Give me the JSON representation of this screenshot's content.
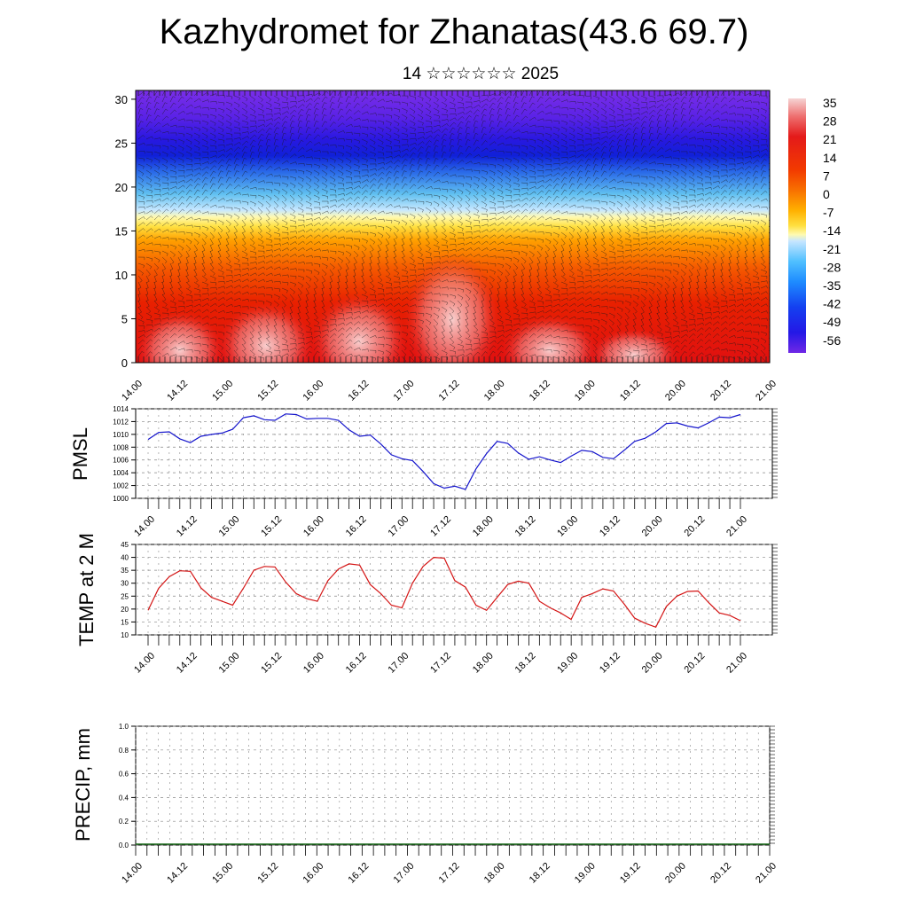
{
  "title": "Kazhydromet for Zhanatas(43.6 69.7)",
  "subtitle": "14 ☆☆☆☆☆☆ 2025",
  "time_labels": [
    "14.00",
    "14.12",
    "15.00",
    "15.12",
    "16.00",
    "16.12",
    "17.00",
    "17.12",
    "18.00",
    "18.12",
    "19.00",
    "19.12",
    "20.00",
    "20.12",
    "21.00"
  ],
  "chart_data": [
    {
      "type": "heatmap",
      "name": "cross-section",
      "y_ticks": [
        0,
        5,
        10,
        15,
        20,
        25,
        30
      ],
      "ylim": [
        0,
        31
      ],
      "colorbar": {
        "labels": [
          "35",
          "28",
          "21",
          "14",
          "7",
          "0",
          "-7",
          "-14",
          "-21",
          "-28",
          "-35",
          "-42",
          "-49",
          "-56"
        ],
        "colors": [
          "#f4c9c9",
          "#ef6a6a",
          "#e41a1a",
          "#f23a00",
          "#f75a00",
          "#ff9000",
          "#ffc800",
          "#fff060",
          "#c8e6ff",
          "#5ac8ff",
          "#1e8cff",
          "#1450f0",
          "#1e14e6",
          "#6e28e6"
        ]
      }
    },
    {
      "type": "line",
      "ylabel": "PMSL",
      "ylim": [
        1000,
        1014
      ],
      "y_ticks": [
        1000,
        1002,
        1004,
        1006,
        1008,
        1010,
        1012,
        1014
      ],
      "color": "#1414cc",
      "values": [
        1009.2,
        1010.3,
        1010.4,
        1009.3,
        1008.7,
        1009.7,
        1010.0,
        1010.2,
        1010.8,
        1012.6,
        1012.9,
        1012.3,
        1012.2,
        1013.2,
        1013.1,
        1012.4,
        1012.5,
        1012.5,
        1012.2,
        1010.7,
        1009.7,
        1009.9,
        1008.5,
        1006.8,
        1006.2,
        1005.9,
        1004.2,
        1002.3,
        1001.6,
        1001.9,
        1001.4,
        1004.6,
        1007.0,
        1008.9,
        1008.6,
        1007.1,
        1006.1,
        1006.5,
        1006.0,
        1005.6,
        1006.6,
        1007.5,
        1007.3,
        1006.4,
        1006.2,
        1007.5,
        1008.9,
        1009.4,
        1010.4,
        1011.7,
        1011.8,
        1011.3,
        1011.0,
        1011.8,
        1012.7,
        1012.6,
        1013.1
      ]
    },
    {
      "type": "line",
      "ylabel": "TEMP at 2 M",
      "ylim": [
        10,
        45
      ],
      "y_ticks": [
        10,
        15,
        20,
        25,
        30,
        35,
        40,
        45
      ],
      "color": "#d41414",
      "values": [
        19.5,
        28.0,
        32.5,
        34.8,
        34.6,
        28.2,
        24.5,
        23.0,
        21.5,
        28.0,
        35.0,
        36.5,
        36.3,
        30.5,
        26.0,
        24.0,
        23.0,
        31.0,
        35.5,
        37.5,
        37.0,
        29.5,
        26.0,
        21.5,
        20.5,
        30.0,
        36.5,
        40.0,
        39.7,
        31.0,
        28.5,
        21.5,
        19.5,
        24.5,
        29.5,
        30.8,
        30.0,
        23.0,
        20.5,
        18.5,
        16.0,
        24.5,
        26.0,
        27.8,
        27.0,
        22.0,
        16.5,
        14.5,
        13.0,
        21.0,
        25.0,
        26.8,
        27.0,
        22.5,
        18.5,
        17.5,
        15.5
      ]
    },
    {
      "type": "bar",
      "ylabel": "PRECIP, mm",
      "ylim": [
        0,
        1
      ],
      "y_ticks": [
        "0.0",
        "0.2",
        "0.4",
        "0.6",
        "0.8",
        "1.0"
      ],
      "values": []
    }
  ]
}
